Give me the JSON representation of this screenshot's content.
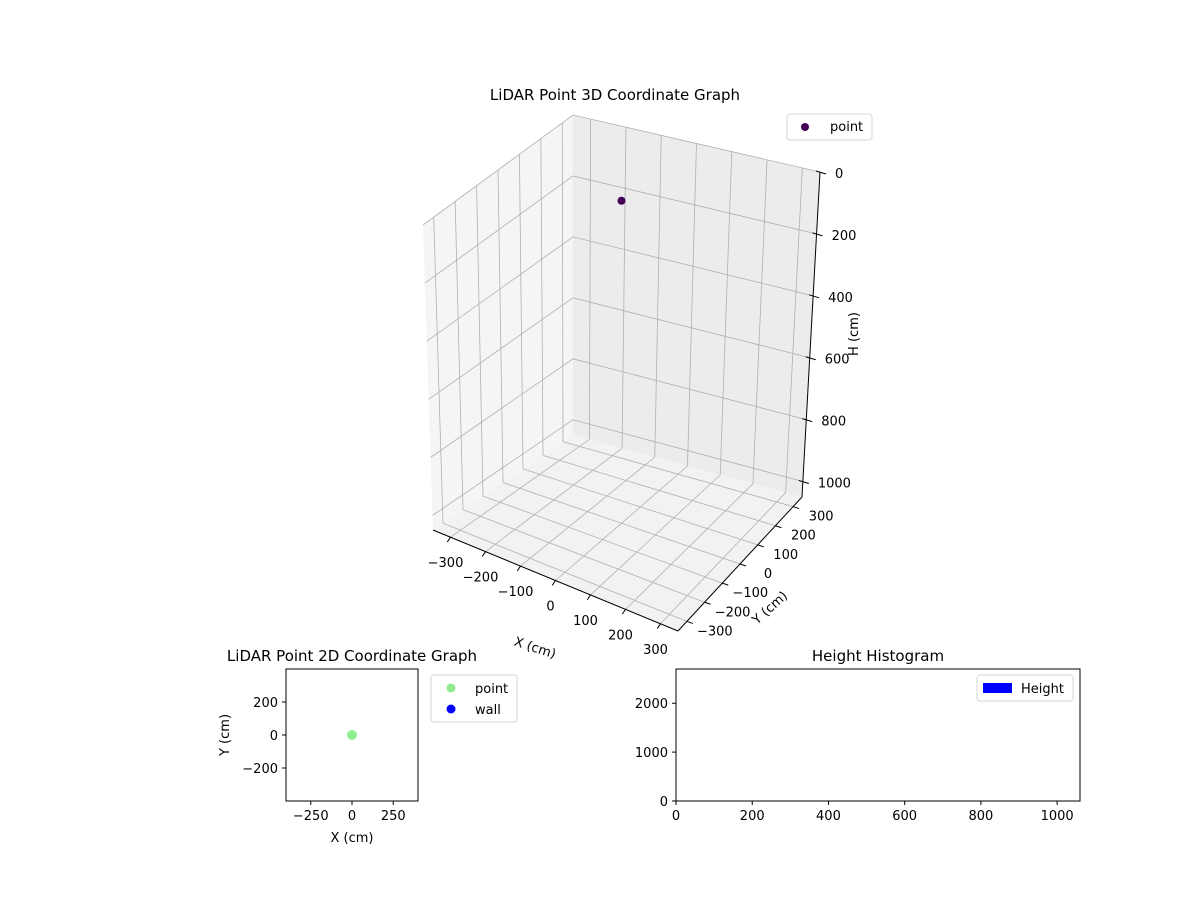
{
  "chart_data": [
    {
      "type": "scatter3d",
      "title": "LiDAR Point 3D Coordinate Graph",
      "xlabel": "X (cm)",
      "ylabel": "Y (cm)",
      "zlabel": "H (cm)",
      "xlim": [
        -350,
        350
      ],
      "ylim": [
        -350,
        350
      ],
      "zlim": [
        0,
        1050
      ],
      "z_inverted": true,
      "xticks": [
        -300,
        -200,
        -100,
        0,
        100,
        200,
        300
      ],
      "yticks": [
        -300,
        -200,
        -100,
        0,
        100,
        200,
        300
      ],
      "zticks": [
        0,
        200,
        400,
        600,
        800,
        1000
      ],
      "grid": true,
      "legend": "upper right",
      "series": [
        {
          "name": "point",
          "color": "#440154",
          "points": [
            {
              "x": 0,
              "y": 0,
              "z": 0
            }
          ]
        }
      ]
    },
    {
      "type": "scatter",
      "title": "LiDAR Point 2D Coordinate Graph",
      "xlabel": "X (cm)",
      "ylabel": "Y (cm)",
      "xlim": [
        -400,
        400
      ],
      "ylim": [
        -400,
        400
      ],
      "xticks": [
        -250,
        0,
        250
      ],
      "yticks": [
        -200,
        0,
        200
      ],
      "legend": "outside right",
      "series": [
        {
          "name": "point",
          "color": "#90ee90",
          "points": [
            {
              "x": 0,
              "y": 0
            }
          ]
        },
        {
          "name": "wall",
          "color": "#0000ff",
          "points": []
        }
      ]
    },
    {
      "type": "histogram",
      "title": "Height Histogram",
      "xlim": [
        0,
        1060
      ],
      "ylim": [
        0,
        2700
      ],
      "xticks": [
        0,
        200,
        400,
        600,
        800,
        1000
      ],
      "yticks": [
        0,
        1000,
        2000
      ],
      "legend": "upper right",
      "series": [
        {
          "name": "Height",
          "color": "#0000ff",
          "bins": []
        }
      ]
    }
  ]
}
